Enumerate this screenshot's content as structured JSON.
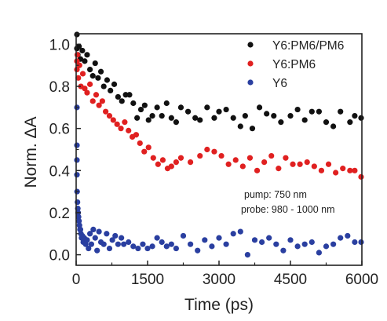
{
  "chart_data": {
    "type": "scatter",
    "xlabel": "Time (ps)",
    "ylabel": "Norm. ΔA",
    "xlim": [
      0,
      6000
    ],
    "ylim": [
      -0.05,
      1.05
    ],
    "xticks": [
      0,
      1500,
      3000,
      4500,
      6000
    ],
    "xtick_labels": [
      "0",
      "1500",
      "3000",
      "4500",
      "6000"
    ],
    "yticks": [
      0.0,
      0.2,
      0.4,
      0.6,
      0.8,
      1.0
    ],
    "ytick_labels": [
      "0.0",
      "0.2",
      "0.4",
      "0.6",
      "0.8",
      "1.0"
    ],
    "grid": false,
    "legend_position": "top-right",
    "annotations": [
      "pump: 750 nm",
      "probe: 980 - 1000 nm"
    ],
    "series": [
      {
        "name": "Y6:PM6/PM6",
        "color": "#111111",
        "points": [
          [
            0,
            0.98
          ],
          [
            15,
            1.05
          ],
          [
            35,
            0.95
          ],
          [
            60,
            0.99
          ],
          [
            90,
            0.93
          ],
          [
            130,
            0.97
          ],
          [
            180,
            0.92
          ],
          [
            230,
            0.95
          ],
          [
            290,
            0.88
          ],
          [
            350,
            0.85
          ],
          [
            400,
            0.91
          ],
          [
            460,
            0.84
          ],
          [
            520,
            0.87
          ],
          [
            580,
            0.8
          ],
          [
            650,
            0.83
          ],
          [
            720,
            0.78
          ],
          [
            800,
            0.81
          ],
          [
            880,
            0.75
          ],
          [
            960,
            0.73
          ],
          [
            1040,
            0.76
          ],
          [
            1120,
            0.76
          ],
          [
            1200,
            0.72
          ],
          [
            1280,
            0.65
          ],
          [
            1360,
            0.69
          ],
          [
            1440,
            0.71
          ],
          [
            1520,
            0.64
          ],
          [
            1600,
            0.66
          ],
          [
            1700,
            0.7
          ],
          [
            1800,
            0.66
          ],
          [
            1900,
            0.72
          ],
          [
            2000,
            0.65
          ],
          [
            2100,
            0.63
          ],
          [
            2200,
            0.7
          ],
          [
            2350,
            0.68
          ],
          [
            2500,
            0.65
          ],
          [
            2600,
            0.64
          ],
          [
            2750,
            0.7
          ],
          [
            2900,
            0.65
          ],
          [
            3000,
            0.68
          ],
          [
            3150,
            0.69
          ],
          [
            3300,
            0.65
          ],
          [
            3450,
            0.61
          ],
          [
            3550,
            0.66
          ],
          [
            3700,
            0.6
          ],
          [
            3850,
            0.7
          ],
          [
            4000,
            0.67
          ],
          [
            4150,
            0.66
          ],
          [
            4300,
            0.63
          ],
          [
            4500,
            0.66
          ],
          [
            4650,
            0.69
          ],
          [
            4800,
            0.64
          ],
          [
            4950,
            0.68
          ],
          [
            5100,
            0.68
          ],
          [
            5250,
            0.63
          ],
          [
            5400,
            0.61
          ],
          [
            5550,
            0.68
          ],
          [
            5750,
            0.63
          ],
          [
            5850,
            0.66
          ],
          [
            6000,
            0.65
          ]
        ]
      },
      {
        "name": "Y6:PM6",
        "color": "#e02020",
        "points": [
          [
            0,
            0.92
          ],
          [
            10,
            0.88
          ],
          [
            25,
            0.95
          ],
          [
            45,
            0.84
          ],
          [
            70,
            0.9
          ],
          [
            100,
            0.8
          ],
          [
            140,
            0.86
          ],
          [
            180,
            0.79
          ],
          [
            230,
            0.77
          ],
          [
            290,
            0.81
          ],
          [
            350,
            0.73
          ],
          [
            420,
            0.76
          ],
          [
            480,
            0.71
          ],
          [
            550,
            0.73
          ],
          [
            620,
            0.68
          ],
          [
            700,
            0.66
          ],
          [
            780,
            0.64
          ],
          [
            860,
            0.62
          ],
          [
            940,
            0.6
          ],
          [
            1020,
            0.63
          ],
          [
            1100,
            0.59
          ],
          [
            1180,
            0.56
          ],
          [
            1260,
            0.57
          ],
          [
            1340,
            0.53
          ],
          [
            1430,
            0.49
          ],
          [
            1520,
            0.51
          ],
          [
            1620,
            0.46
          ],
          [
            1720,
            0.43
          ],
          [
            1820,
            0.45
          ],
          [
            1920,
            0.41
          ],
          [
            2000,
            0.42
          ],
          [
            2100,
            0.44
          ],
          [
            2200,
            0.46
          ],
          [
            2400,
            0.44
          ],
          [
            2600,
            0.47
          ],
          [
            2750,
            0.5
          ],
          [
            2900,
            0.49
          ],
          [
            3050,
            0.47
          ],
          [
            3200,
            0.43
          ],
          [
            3350,
            0.45
          ],
          [
            3500,
            0.42
          ],
          [
            3650,
            0.46
          ],
          [
            3800,
            0.4
          ],
          [
            3950,
            0.44
          ],
          [
            4100,
            0.47
          ],
          [
            4250,
            0.41
          ],
          [
            4400,
            0.46
          ],
          [
            4550,
            0.43
          ],
          [
            4700,
            0.43
          ],
          [
            4850,
            0.44
          ],
          [
            5000,
            0.42
          ],
          [
            5150,
            0.4
          ],
          [
            5300,
            0.43
          ],
          [
            5450,
            0.39
          ],
          [
            5600,
            0.41
          ],
          [
            5750,
            0.4
          ],
          [
            5850,
            0.4
          ],
          [
            6000,
            0.37
          ]
        ]
      },
      {
        "name": "Y6",
        "color": "#2a3fa0",
        "points": [
          [
            0,
            0.7
          ],
          [
            5,
            0.52
          ],
          [
            10,
            0.45
          ],
          [
            15,
            0.38
          ],
          [
            20,
            0.3
          ],
          [
            28,
            0.25
          ],
          [
            35,
            0.22
          ],
          [
            42,
            0.2
          ],
          [
            50,
            0.18
          ],
          [
            60,
            0.16
          ],
          [
            70,
            0.14
          ],
          [
            80,
            0.12
          ],
          [
            90,
            0.12
          ],
          [
            100,
            0.1
          ],
          [
            115,
            0.08
          ],
          [
            130,
            0.09
          ],
          [
            150,
            0.06
          ],
          [
            170,
            0.08
          ],
          [
            200,
            0.05
          ],
          [
            230,
            0.07
          ],
          [
            260,
            0.03
          ],
          [
            290,
            0.1
          ],
          [
            320,
            0.05
          ],
          [
            360,
            0.12
          ],
          [
            400,
            0.08
          ],
          [
            440,
            0.02
          ],
          [
            480,
            0.11
          ],
          [
            520,
            0.06
          ],
          [
            580,
            0.05
          ],
          [
            640,
            0.1
          ],
          [
            700,
            0.03
          ],
          [
            760,
            0.07
          ],
          [
            820,
            0.09
          ],
          [
            880,
            0.05
          ],
          [
            950,
            0.08
          ],
          [
            1000,
            0.05
          ],
          [
            1100,
            0.06
          ],
          [
            1200,
            0.04
          ],
          [
            1300,
            0.03
          ],
          [
            1400,
            0.05
          ],
          [
            1500,
            0.03
          ],
          [
            1600,
            0.04
          ],
          [
            1700,
            0.08
          ],
          [
            1800,
            0.06
          ],
          [
            1900,
            0.04
          ],
          [
            2000,
            0.05
          ],
          [
            2100,
            0.03
          ],
          [
            2250,
            0.09
          ],
          [
            2400,
            0.05
          ],
          [
            2550,
            0.02
          ],
          [
            2700,
            0.07
          ],
          [
            2850,
            0.04
          ],
          [
            3000,
            0.08
          ],
          [
            3150,
            0.05
          ],
          [
            3300,
            0.1
          ],
          [
            3450,
            0.11
          ],
          [
            3600,
            0.0
          ],
          [
            3750,
            0.07
          ],
          [
            3900,
            0.06
          ],
          [
            4050,
            0.08
          ],
          [
            4200,
            0.05
          ],
          [
            4350,
            0.02
          ],
          [
            4500,
            0.07
          ],
          [
            4650,
            0.04
          ],
          [
            4800,
            0.05
          ],
          [
            4950,
            0.06
          ],
          [
            5100,
            0.01
          ],
          [
            5250,
            0.04
          ],
          [
            5400,
            0.05
          ],
          [
            5550,
            0.08
          ],
          [
            5700,
            0.09
          ],
          [
            5850,
            0.06
          ],
          [
            6000,
            0.06
          ]
        ]
      }
    ]
  }
}
